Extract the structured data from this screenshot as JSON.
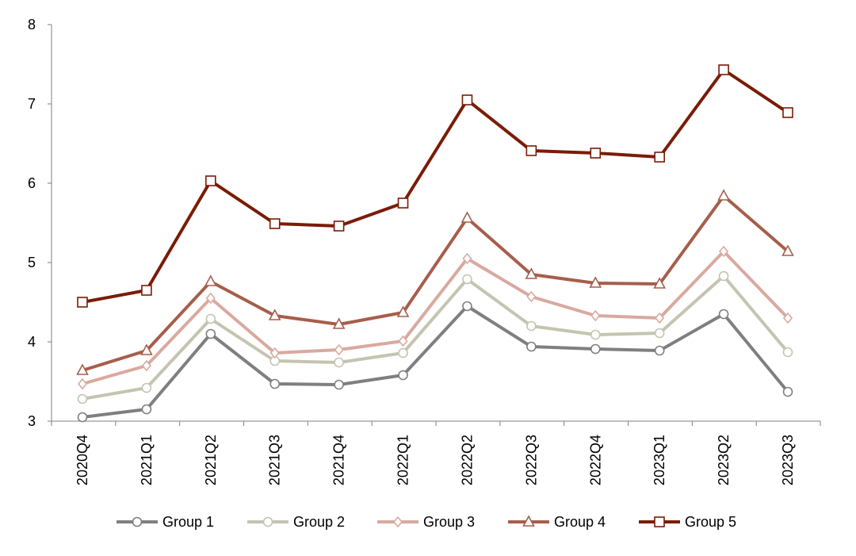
{
  "chart_data": {
    "type": "line",
    "title": "",
    "xlabel": "",
    "ylabel": "",
    "ylim": [
      3,
      8
    ],
    "yticks": [
      3,
      4,
      5,
      6,
      7,
      8
    ],
    "categories": [
      "2020Q4",
      "2021Q1",
      "2021Q2",
      "2021Q3",
      "2021Q4",
      "2022Q1",
      "2022Q2",
      "2022Q3",
      "2022Q4",
      "2023Q1",
      "2023Q2",
      "2023Q3"
    ],
    "series": [
      {
        "name": "Group 1",
        "color": "#7f7f7f",
        "marker": "circle",
        "values": [
          3.05,
          3.15,
          4.1,
          3.47,
          3.46,
          3.58,
          4.45,
          3.94,
          3.91,
          3.89,
          4.35,
          3.37
        ]
      },
      {
        "name": "Group 2",
        "color": "#c4c4b0",
        "marker": "circle",
        "values": [
          3.28,
          3.42,
          4.29,
          3.76,
          3.74,
          3.86,
          4.79,
          4.2,
          4.09,
          4.11,
          4.83,
          3.87
        ]
      },
      {
        "name": "Group 3",
        "color": "#d9a99f",
        "marker": "diamond",
        "values": [
          3.47,
          3.7,
          4.55,
          3.86,
          3.9,
          4.01,
          5.05,
          4.57,
          4.33,
          4.3,
          5.14,
          4.3
        ]
      },
      {
        "name": "Group 4",
        "color": "#a65e4a",
        "marker": "triangle",
        "values": [
          3.64,
          3.89,
          4.76,
          4.33,
          4.22,
          4.37,
          5.56,
          4.85,
          4.74,
          4.73,
          5.84,
          5.14
        ]
      },
      {
        "name": "Group 5",
        "color": "#7a1c06",
        "marker": "square",
        "values": [
          4.5,
          4.65,
          6.03,
          5.49,
          5.46,
          5.75,
          7.05,
          6.41,
          6.38,
          6.33,
          7.43,
          6.89
        ]
      }
    ],
    "legend_position": "bottom"
  }
}
